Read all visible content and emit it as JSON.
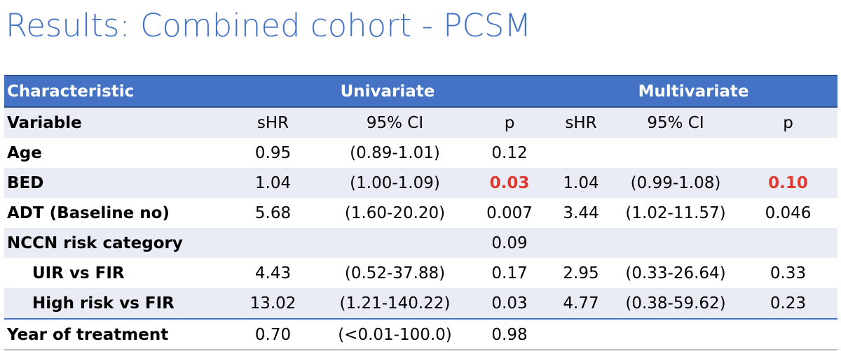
{
  "slide": {
    "title": "Results: Combined cohort - PCSM"
  },
  "table": {
    "header": {
      "characteristic": "Characteristic",
      "univariate": "Univariate",
      "multivariate": "Multivariate"
    },
    "subheader": {
      "variable": "Variable",
      "u_shr": "sHR",
      "u_ci": "95% CI",
      "u_p": "p",
      "m_shr": "sHR",
      "m_ci": "95% CI",
      "m_p": "p"
    },
    "rows": [
      {
        "label": "Age",
        "u_shr": "0.95",
        "u_ci": "(0.89-1.01)",
        "u_p": "0.12",
        "m_shr": "",
        "m_ci": "",
        "m_p": ""
      },
      {
        "label": "BED",
        "u_shr": "1.04",
        "u_ci": "(1.00-1.09)",
        "u_p": "0.03",
        "m_shr": "1.04",
        "m_ci": "(0.99-1.08)",
        "m_p": "0.10"
      },
      {
        "label": "ADT (Baseline no)",
        "u_shr": "5.68",
        "u_ci": "(1.60-20.20)",
        "u_p": "0.007",
        "m_shr": "3.44",
        "m_ci": "(1.02-11.57)",
        "m_p": "0.046"
      },
      {
        "label": "NCCN risk category",
        "u_shr": "",
        "u_ci": "",
        "u_p": "0.09",
        "m_shr": "",
        "m_ci": "",
        "m_p": ""
      },
      {
        "label": "UIR vs FIR",
        "u_shr": "4.43",
        "u_ci": "(0.52-37.88)",
        "u_p": "0.17",
        "m_shr": "2.95",
        "m_ci": "(0.33-26.64)",
        "m_p": "0.33"
      },
      {
        "label": "High risk vs FIR",
        "u_shr": "13.02",
        "u_ci": "(1.21-140.22)",
        "u_p": "0.03",
        "m_shr": "4.77",
        "m_ci": "(0.38-59.62)",
        "m_p": "0.23"
      },
      {
        "label": "Year of treatment",
        "u_shr": "0.70",
        "u_ci": "(<0.01-100.0)",
        "u_p": "0.98",
        "m_shr": "",
        "m_ci": "",
        "m_p": ""
      }
    ],
    "colors": {
      "header_bg": "#4472c4",
      "band_bg": "#e9ecf5",
      "significant": "#e03a2f"
    }
  }
}
